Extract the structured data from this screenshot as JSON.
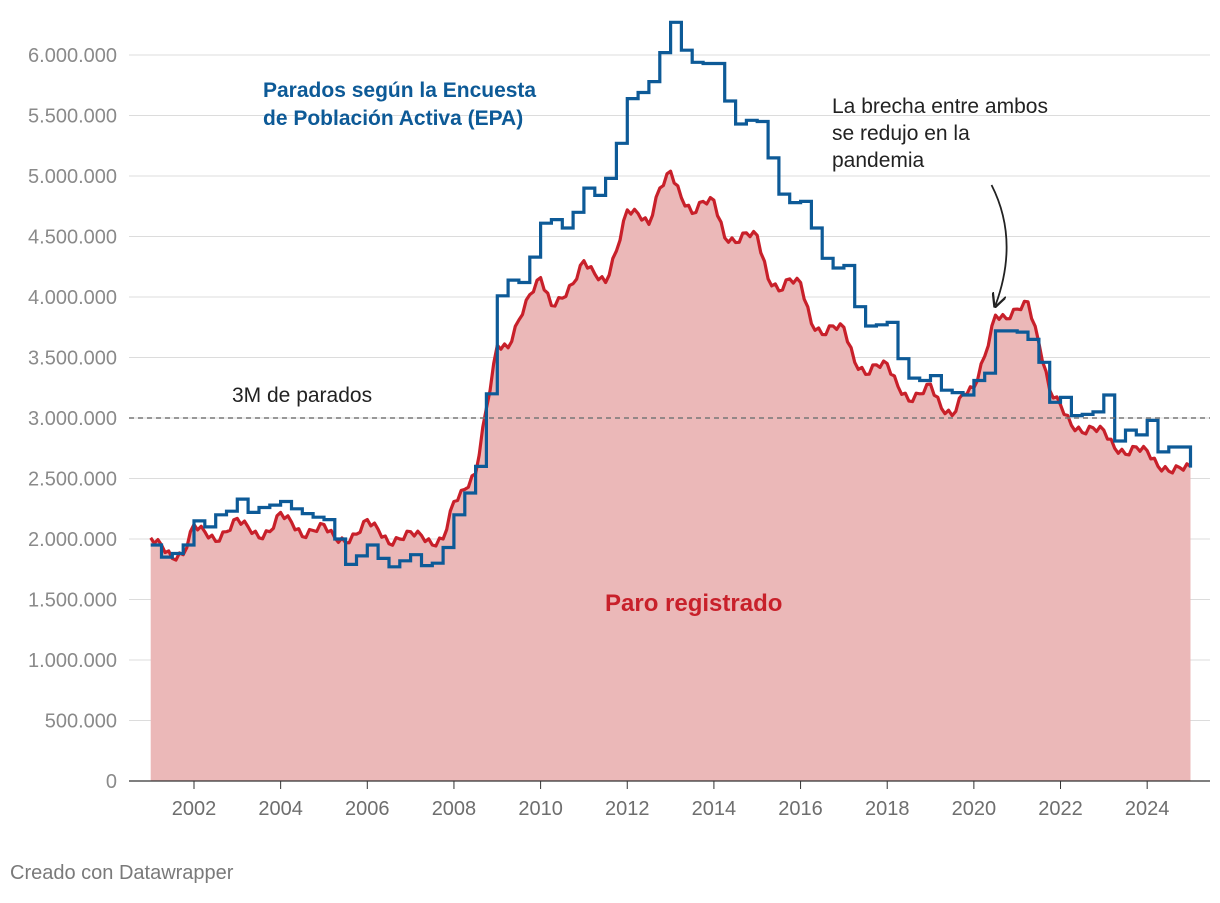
{
  "chart_data": {
    "type": "line",
    "title": "",
    "xlabel": "",
    "ylabel": "",
    "xlim": [
      2001.0,
      2025.1
    ],
    "ylim": [
      0,
      6000000
    ],
    "y_ticks": [
      0,
      500000,
      1000000,
      1500000,
      2000000,
      2500000,
      3000000,
      3500000,
      4000000,
      4500000,
      5000000,
      5500000,
      6000000
    ],
    "y_tick_labels": [
      "0",
      "500.000",
      "1.000.000",
      "1.500.000",
      "2.000.000",
      "2.500.000",
      "3.000.000",
      "3.500.000",
      "4.000.000",
      "4.500.000",
      "5.000.000",
      "5.500.000",
      "6.000.000"
    ],
    "x_ticks": [
      2002,
      2004,
      2006,
      2008,
      2010,
      2012,
      2014,
      2016,
      2018,
      2020,
      2022,
      2024
    ],
    "x_tick_labels": [
      "2002",
      "2004",
      "2006",
      "2008",
      "2010",
      "2012",
      "2014",
      "2016",
      "2018",
      "2020",
      "2022",
      "2024"
    ],
    "reference_line": {
      "value": 3000000,
      "label": "3M de parados"
    },
    "series": [
      {
        "name": "Parados según la Encuesta de Población Activa (EPA)",
        "label_lines": [
          "Parados según la Encuesta",
          "de Población Activa (EPA)"
        ],
        "style": "step",
        "color": "#0d5a97",
        "x": [
          2001.0,
          2001.25,
          2001.5,
          2001.75,
          2002.0,
          2002.25,
          2002.5,
          2002.75,
          2003.0,
          2003.25,
          2003.5,
          2003.75,
          2004.0,
          2004.25,
          2004.5,
          2004.75,
          2005.0,
          2005.25,
          2005.5,
          2005.75,
          2006.0,
          2006.25,
          2006.5,
          2006.75,
          2007.0,
          2007.25,
          2007.5,
          2007.75,
          2008.0,
          2008.25,
          2008.5,
          2008.75,
          2009.0,
          2009.25,
          2009.5,
          2009.75,
          2010.0,
          2010.25,
          2010.5,
          2010.75,
          2011.0,
          2011.25,
          2011.5,
          2011.75,
          2012.0,
          2012.25,
          2012.5,
          2012.75,
          2013.0,
          2013.25,
          2013.5,
          2013.75,
          2014.0,
          2014.25,
          2014.5,
          2014.75,
          2015.0,
          2015.25,
          2015.5,
          2015.75,
          2016.0,
          2016.25,
          2016.5,
          2016.75,
          2017.0,
          2017.25,
          2017.5,
          2017.75,
          2018.0,
          2018.25,
          2018.5,
          2018.75,
          2019.0,
          2019.25,
          2019.5,
          2019.75,
          2020.0,
          2020.25,
          2020.5,
          2020.75,
          2021.0,
          2021.25,
          2021.5,
          2021.75,
          2022.0,
          2022.25,
          2022.5,
          2022.75,
          2023.0,
          2023.25,
          2023.5,
          2023.75,
          2024.0,
          2024.25,
          2024.5,
          2024.75,
          2025.0
        ],
        "values": [
          1950000,
          1850000,
          1880000,
          1950000,
          2150000,
          2100000,
          2200000,
          2230000,
          2330000,
          2220000,
          2260000,
          2280000,
          2310000,
          2250000,
          2210000,
          2180000,
          2160000,
          2000000,
          1790000,
          1860000,
          1950000,
          1840000,
          1770000,
          1820000,
          1870000,
          1780000,
          1800000,
          1930000,
          2200000,
          2380000,
          2600000,
          3200000,
          4010000,
          4140000,
          4120000,
          4330000,
          4610000,
          4640000,
          4570000,
          4700000,
          4900000,
          4840000,
          4980000,
          5270000,
          5640000,
          5690000,
          5780000,
          6020000,
          6270000,
          6040000,
          5940000,
          5930000,
          5930000,
          5620000,
          5430000,
          5460000,
          5450000,
          5150000,
          4850000,
          4780000,
          4790000,
          4570000,
          4320000,
          4240000,
          4260000,
          3920000,
          3760000,
          3770000,
          3790000,
          3490000,
          3330000,
          3310000,
          3350000,
          3230000,
          3210000,
          3190000,
          3310000,
          3370000,
          3720000,
          3720000,
          3710000,
          3650000,
          3460000,
          3130000,
          3170000,
          3020000,
          3030000,
          3050000,
          3190000,
          2810000,
          2900000,
          2860000,
          2980000,
          2720000,
          2760000,
          2760000,
          2590000
        ]
      },
      {
        "name": "Paro registrado",
        "style": "line-filled",
        "color": "#c8202a",
        "fill": "#ebb8b8",
        "x": [
          2001.0,
          2001.25,
          2001.5,
          2001.75,
          2002.0,
          2002.25,
          2002.5,
          2002.75,
          2003.0,
          2003.25,
          2003.5,
          2003.75,
          2004.0,
          2004.25,
          2004.5,
          2004.75,
          2005.0,
          2005.25,
          2005.5,
          2005.75,
          2006.0,
          2006.25,
          2006.5,
          2006.75,
          2007.0,
          2007.25,
          2007.5,
          2007.75,
          2008.0,
          2008.25,
          2008.5,
          2008.75,
          2009.0,
          2009.25,
          2009.5,
          2009.75,
          2010.0,
          2010.25,
          2010.5,
          2010.75,
          2011.0,
          2011.25,
          2011.5,
          2011.75,
          2012.0,
          2012.25,
          2012.5,
          2012.75,
          2013.0,
          2013.25,
          2013.5,
          2013.75,
          2014.0,
          2014.25,
          2014.5,
          2014.75,
          2015.0,
          2015.25,
          2015.5,
          2015.75,
          2016.0,
          2016.25,
          2016.5,
          2016.75,
          2017.0,
          2017.25,
          2017.5,
          2017.75,
          2018.0,
          2018.25,
          2018.5,
          2018.75,
          2019.0,
          2019.25,
          2019.5,
          2019.75,
          2020.0,
          2020.25,
          2020.5,
          2020.75,
          2021.0,
          2021.25,
          2021.5,
          2021.75,
          2022.0,
          2022.25,
          2022.5,
          2022.75,
          2023.0,
          2023.25,
          2023.5,
          2023.75,
          2024.0,
          2024.25,
          2024.5,
          2024.75,
          2025.0
        ],
        "values": [
          2010000,
          1950000,
          1840000,
          1870000,
          2120000,
          2060000,
          1980000,
          2060000,
          2170000,
          2100000,
          2010000,
          2060000,
          2220000,
          2140000,
          2020000,
          2070000,
          2120000,
          2010000,
          1970000,
          2040000,
          2160000,
          2080000,
          1960000,
          2000000,
          2060000,
          2030000,
          1950000,
          2000000,
          2310000,
          2410000,
          2540000,
          3080000,
          3600000,
          3580000,
          3810000,
          4020000,
          4160000,
          3930000,
          3990000,
          4110000,
          4300000,
          4190000,
          4120000,
          4380000,
          4720000,
          4690000,
          4600000,
          4900000,
          5040000,
          4820000,
          4690000,
          4790000,
          4800000,
          4490000,
          4450000,
          4530000,
          4510000,
          4150000,
          4050000,
          4150000,
          4120000,
          3780000,
          3690000,
          3760000,
          3750000,
          3460000,
          3360000,
          3440000,
          3450000,
          3260000,
          3140000,
          3200000,
          3280000,
          3080000,
          3020000,
          3200000,
          3250000,
          3510000,
          3850000,
          3820000,
          3900000,
          3960000,
          3620000,
          3230000,
          3110000,
          2940000,
          2880000,
          2920000,
          2900000,
          2750000,
          2700000,
          2760000,
          2730000,
          2600000,
          2560000,
          2590000,
          2600000
        ]
      }
    ],
    "annotations": [
      {
        "text_lines": [
          "La brecha entre ambos",
          "se redujo en la",
          "pandemia"
        ],
        "arrow_to": [
          2020.5,
          3900000
        ]
      }
    ]
  },
  "credit": "Creado con Datawrapper"
}
